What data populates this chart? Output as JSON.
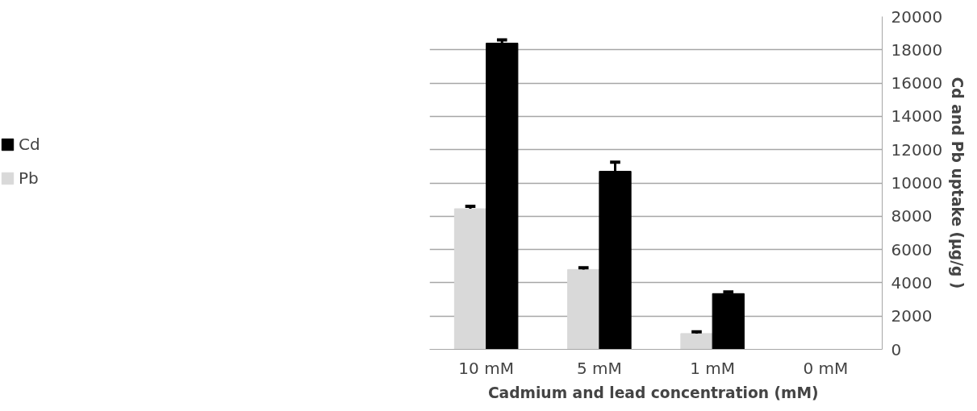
{
  "chart_data": {
    "type": "bar",
    "xlabel": "Cadmium  and lead concentration (mM)",
    "ylabel": "Cd and Pb uptake (µg/g )",
    "categories": [
      "10 mM",
      "5 mM",
      "1 mM",
      "0 mM"
    ],
    "series": [
      {
        "name": "Pb",
        "color": "#d9d9d9",
        "values": [
          8450,
          4800,
          950,
          0
        ],
        "errors": [
          150,
          100,
          100,
          null
        ]
      },
      {
        "name": "Cd",
        "color": "#000000",
        "values": [
          18400,
          10700,
          3350,
          0
        ],
        "errors": [
          200,
          550,
          100,
          null
        ]
      }
    ],
    "ylim": [
      0,
      20000
    ],
    "yticks": [
      0,
      2000,
      4000,
      6000,
      8000,
      10000,
      12000,
      14000,
      16000,
      18000,
      20000
    ],
    "grid": "y",
    "legend": "left"
  }
}
